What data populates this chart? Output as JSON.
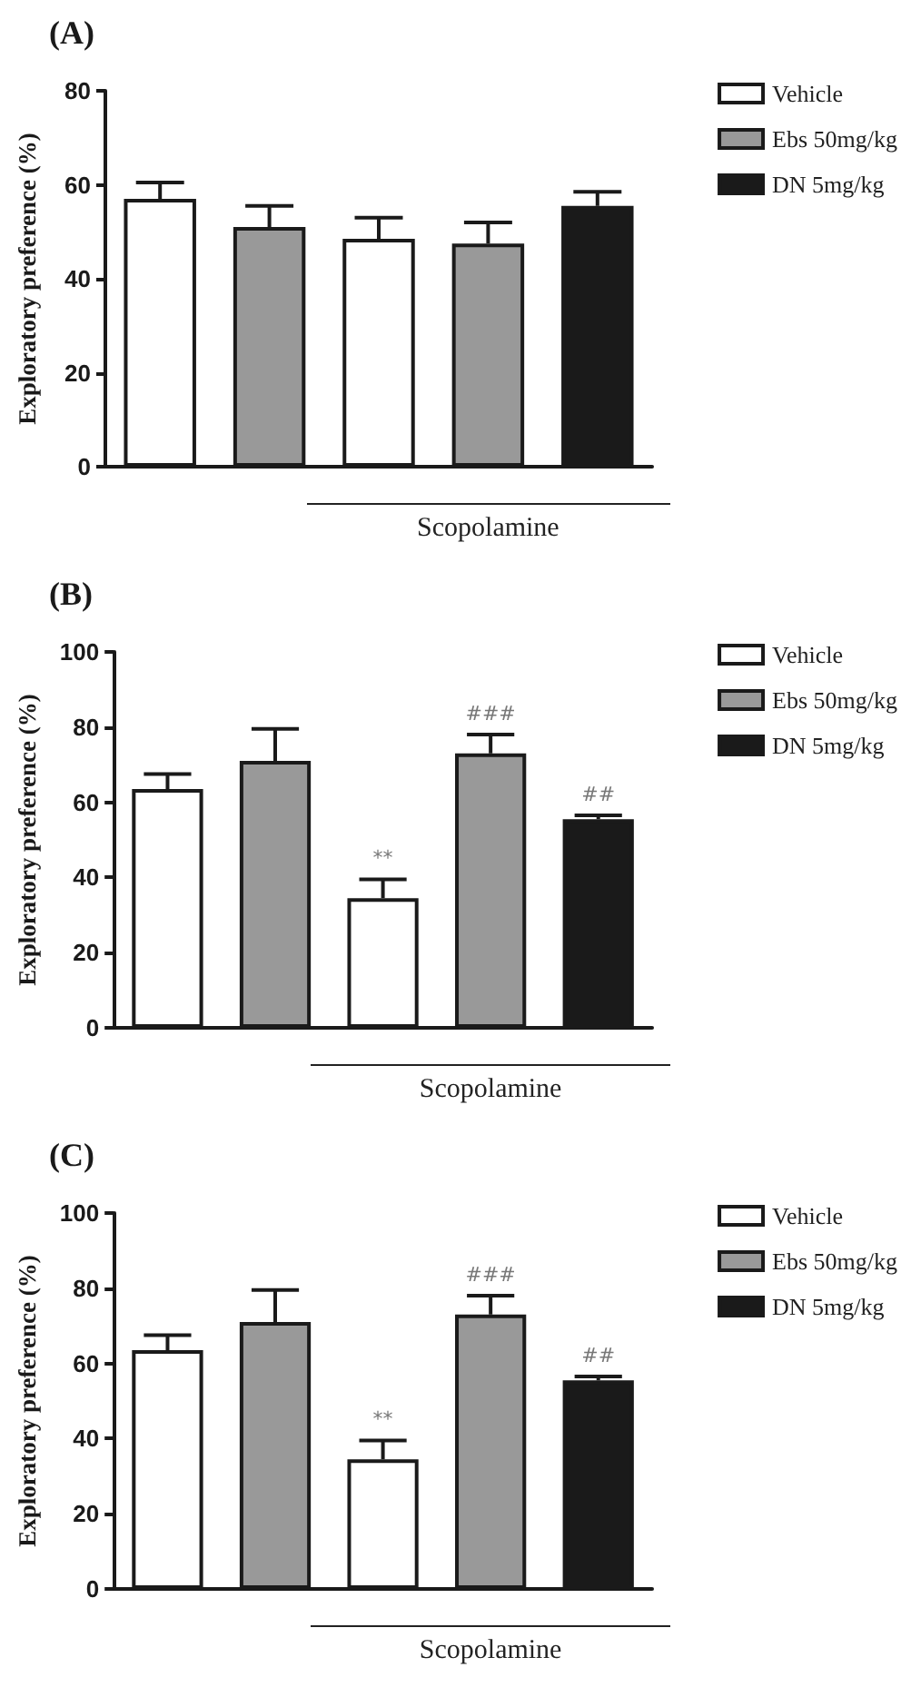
{
  "chart_data": [
    {
      "type": "bar",
      "title": "(A)",
      "ylabel": "Exploratory preference (%)",
      "categories": [
        null,
        null,
        null,
        null,
        null
      ],
      "ylim": [
        0,
        80
      ],
      "yticks": [
        0,
        20,
        40,
        60,
        80
      ],
      "grid": false,
      "legend": "top right",
      "annotations": [
        "Scopolamine"
      ],
      "series": [
        {
          "name": "Vehicle",
          "color": "#ffffff",
          "values": [
            57,
            null,
            48.5,
            null,
            null
          ],
          "errors": [
            3.5,
            null,
            4.5,
            null,
            null
          ]
        },
        {
          "name": "Ebs 50mg/kg",
          "color": "#999999",
          "values": [
            null,
            51,
            null,
            47.5,
            null
          ],
          "errors": [
            null,
            4.5,
            null,
            4.5,
            null
          ]
        },
        {
          "name": "DN 5mg/kg",
          "color": "#1a1a1a",
          "values": [
            null,
            null,
            null,
            null,
            55.5
          ],
          "errors": [
            null,
            null,
            null,
            null,
            3
          ]
        }
      ]
    },
    {
      "type": "bar",
      "title": "(B)",
      "ylabel": "Exploratory preference (%)",
      "categories": [
        null,
        null,
        null,
        null,
        null
      ],
      "ylim": [
        0,
        100
      ],
      "yticks": [
        0,
        20,
        40,
        60,
        80,
        100
      ],
      "grid": false,
      "legend": "top right",
      "annotations": [
        "Scopolamine"
      ],
      "series": [
        {
          "name": "Vehicle",
          "color": "#ffffff",
          "values": [
            63.5,
            null,
            34.5,
            null,
            null
          ],
          "errors": [
            4,
            null,
            5,
            null,
            null
          ],
          "value_labels": [
            null,
            null,
            "**",
            null,
            null
          ]
        },
        {
          "name": "Ebs 50mg/kg",
          "color": "#999999",
          "values": [
            null,
            71,
            null,
            73,
            null
          ],
          "errors": [
            null,
            8.5,
            null,
            5,
            null
          ],
          "value_labels": [
            null,
            null,
            null,
            "###",
            null
          ]
        },
        {
          "name": "DN 5mg/kg",
          "color": "#1a1a1a",
          "values": [
            null,
            null,
            null,
            null,
            55.5
          ],
          "errors": [
            null,
            null,
            null,
            null,
            1
          ],
          "value_labels": [
            null,
            null,
            null,
            null,
            "##"
          ]
        }
      ]
    },
    {
      "type": "bar",
      "title": "(C)",
      "ylabel": "Exploratory preference (%)",
      "categories": [
        null,
        null,
        null,
        null,
        null
      ],
      "ylim": [
        0,
        100
      ],
      "yticks": [
        0,
        20,
        40,
        60,
        80,
        100
      ],
      "grid": false,
      "legend": "top right",
      "annotations": [
        "Scopolamine"
      ],
      "series": [
        {
          "name": "Vehicle",
          "color": "#ffffff",
          "values": [
            63.5,
            null,
            34.5,
            null,
            null
          ],
          "errors": [
            4,
            null,
            5,
            null,
            null
          ],
          "value_labels": [
            null,
            null,
            "**",
            null,
            null
          ]
        },
        {
          "name": "Ebs 50mg/kg",
          "color": "#999999",
          "values": [
            null,
            71,
            null,
            73,
            null
          ],
          "errors": [
            null,
            8.5,
            null,
            5,
            null
          ],
          "value_labels": [
            null,
            null,
            null,
            "###",
            null
          ]
        },
        {
          "name": "DN 5mg/kg",
          "color": "#1a1a1a",
          "values": [
            null,
            null,
            null,
            null,
            55.5
          ],
          "errors": [
            null,
            null,
            null,
            null,
            1
          ],
          "value_labels": [
            null,
            null,
            null,
            null,
            "##"
          ]
        }
      ]
    }
  ]
}
